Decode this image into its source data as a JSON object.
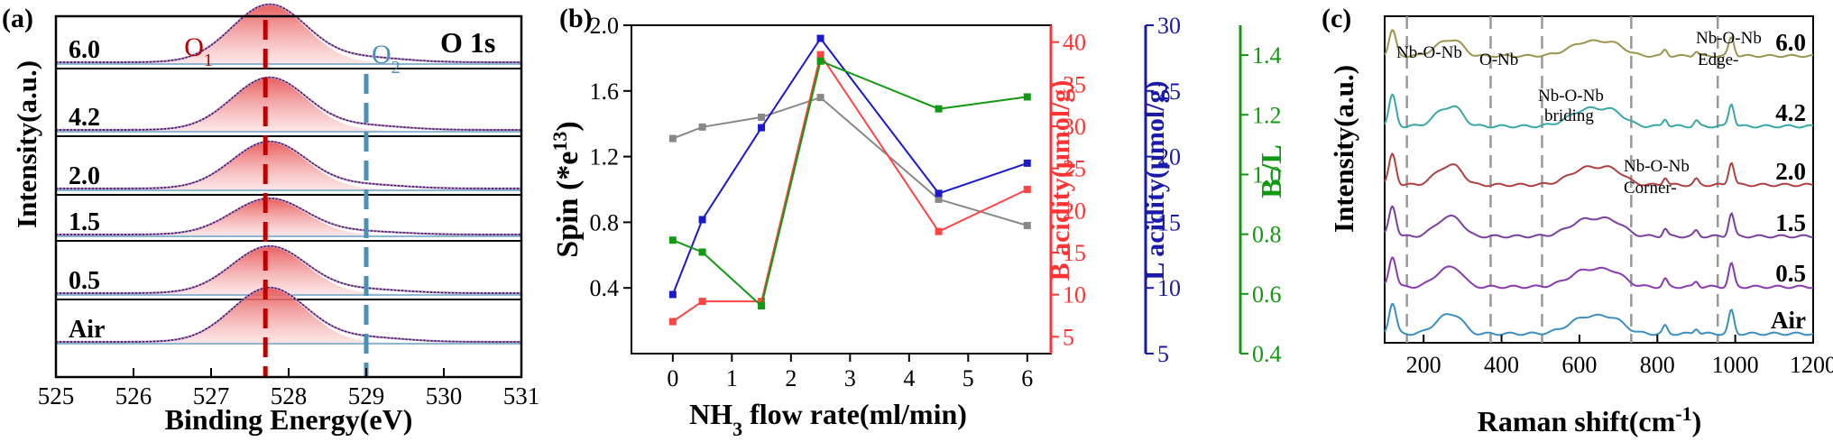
{
  "panels": [
    {
      "id": "a",
      "label": "(a)"
    },
    {
      "id": "b",
      "label": "(b)"
    },
    {
      "id": "c",
      "label": "(c)"
    }
  ],
  "chart_data": [
    {
      "type": "line",
      "panel": "(a)",
      "title": "O 1s",
      "xlabel": "Binding Energy(eV)",
      "ylabel": "Intensity(a.u.)",
      "xlim": [
        525,
        531
      ],
      "xticks": [
        "525",
        "526",
        "527",
        "528",
        "529",
        "530",
        "531"
      ],
      "samples": [
        "6.0",
        "4.2",
        "2.0",
        "1.5",
        "0.5",
        "Air"
      ],
      "peaks": [
        {
          "label": "O",
          "sub": "1",
          "x": 527.7,
          "color": "#c00000"
        },
        {
          "label": "O",
          "sub": "2",
          "x": 529.0,
          "color": "#4a90b8"
        }
      ]
    },
    {
      "type": "line",
      "panel": "(b)",
      "xlabel": "NH3 flow rate(ml/min)",
      "xlabel_parts": [
        "NH",
        "3",
        " flow rate(ml/min)"
      ],
      "xlim": [
        -0.7,
        6.4
      ],
      "xticks": [
        "0",
        "1",
        "2",
        "3",
        "4",
        "5",
        "6"
      ],
      "x": [
        0,
        0.5,
        1.5,
        2.5,
        4.5,
        6
      ],
      "axes": [
        {
          "id": "spin",
          "label_main": "Spin (*e",
          "label_sup": "13",
          "label_end": ")",
          "ylim": [
            0,
            2.0
          ],
          "ticks": [
            "0.4",
            "0.8",
            "1.2",
            "1.6",
            "2.0"
          ],
          "color": "#000000"
        },
        {
          "id": "b_acid",
          "label": "B acidity(μmol/g)",
          "ylim": [
            3,
            42
          ],
          "ticks": [
            "5",
            "10",
            "15",
            "20",
            "25",
            "30",
            "35",
            "40"
          ],
          "color": "#ff3333"
        },
        {
          "id": "l_acid",
          "label": "L acidity(μmol/g)",
          "ylim": [
            5,
            30
          ],
          "ticks": [
            "5",
            "10",
            "15",
            "20",
            "25",
            "30"
          ],
          "color": "#1a1aaa"
        },
        {
          "id": "bl",
          "label": "B /L",
          "ylim": [
            0.4,
            1.5
          ],
          "ticks": [
            "0.4",
            "0.6",
            "0.8",
            "1.0",
            "1.2",
            "1.4"
          ],
          "color": "#119911"
        }
      ],
      "series": [
        {
          "axis": "spin",
          "color": "#888888",
          "values": [
            1.31,
            1.38,
            1.44,
            1.56,
            0.94,
            0.78
          ]
        },
        {
          "axis": "b_acid",
          "color": "#ff4444",
          "values": [
            6.8,
            9.2,
            9.2,
            38.5,
            17.5,
            22.5
          ]
        },
        {
          "axis": "l_acid",
          "color": "#1a1acc",
          "values": [
            9.5,
            15.2,
            22.2,
            29.0,
            17.2,
            19.5
          ]
        },
        {
          "axis": "bl",
          "color": "#119911",
          "values": [
            0.78,
            0.74,
            0.56,
            1.38,
            1.22,
            1.26
          ]
        }
      ]
    },
    {
      "type": "line",
      "panel": "(c)",
      "xlabel_main": "Raman shift(cm",
      "xlabel_sup": "-1",
      "xlabel_end": ")",
      "ylabel": "Intensity(a.u.)",
      "xlim": [
        100,
        1200
      ],
      "xticks": [
        "200",
        "400",
        "600",
        "800",
        "1000",
        "1200"
      ],
      "dashed_lines": [
        157,
        372,
        504,
        733,
        955
      ],
      "annotations": [
        "Nb-O-Nb",
        "O-Nb",
        "Nb-O-Nb",
        "briding",
        "Nb-O-Nb",
        "Corner-",
        "Nb-O-Nb",
        "Edge-"
      ],
      "samples": [
        {
          "label": "6.0",
          "color": "#9b9550"
        },
        {
          "label": "4.2",
          "color": "#3aa7a7"
        },
        {
          "label": "2.0",
          "color": "#b04040"
        },
        {
          "label": "1.5",
          "color": "#7a3fa0"
        },
        {
          "label": "0.5",
          "color": "#8a3ab0"
        },
        {
          "label": "Air",
          "color": "#3a8fc0"
        }
      ]
    }
  ]
}
